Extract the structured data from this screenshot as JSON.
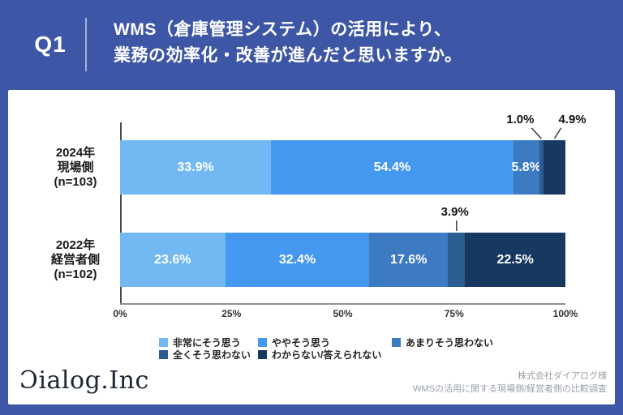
{
  "header": {
    "badge": "Q1",
    "title_line1": "WMS（倉庫管理システム）の活用により、",
    "title_line2": "業務の効率化・改善が進んだと思いますか。"
  },
  "colors": {
    "background": "#3d56a6",
    "panel": "#ffffff",
    "axis": "#4a4a4a",
    "baseline": "#919191"
  },
  "chart_data": {
    "type": "bar",
    "orientation": "horizontal-stacked",
    "categories": [
      [
        "2024年",
        "現場側",
        "(n=103)"
      ],
      [
        "2022年",
        "経営者側",
        "(n=102)"
      ]
    ],
    "series": [
      {
        "name": "非常にそう思う",
        "color": "#72b8f2",
        "values": [
          33.9,
          23.6
        ]
      },
      {
        "name": "ややそう思う",
        "color": "#4598f0",
        "values": [
          54.4,
          32.4
        ]
      },
      {
        "name": "あまりそう思わない",
        "color": "#3c7ac1",
        "values": [
          5.8,
          17.6
        ]
      },
      {
        "name": "全くそう思わない",
        "color": "#2b5c92",
        "values": [
          1.0,
          3.9
        ]
      },
      {
        "name": "わからない/答えられない",
        "color": "#18395f",
        "values": [
          4.9,
          22.5
        ]
      }
    ],
    "x_ticks": [
      "0%",
      "25%",
      "50%",
      "75%",
      "100%"
    ],
    "xlim": [
      0,
      100
    ],
    "grid": false,
    "legend_position": "bottom",
    "value_label_format": "one-decimal-percent"
  },
  "footer": {
    "logo": "Ɔialog.Inc",
    "credit_line1": "株式会社ダイアログ様",
    "credit_line2": "WMSの活用に関する現場側/経営者側の比較調査"
  }
}
